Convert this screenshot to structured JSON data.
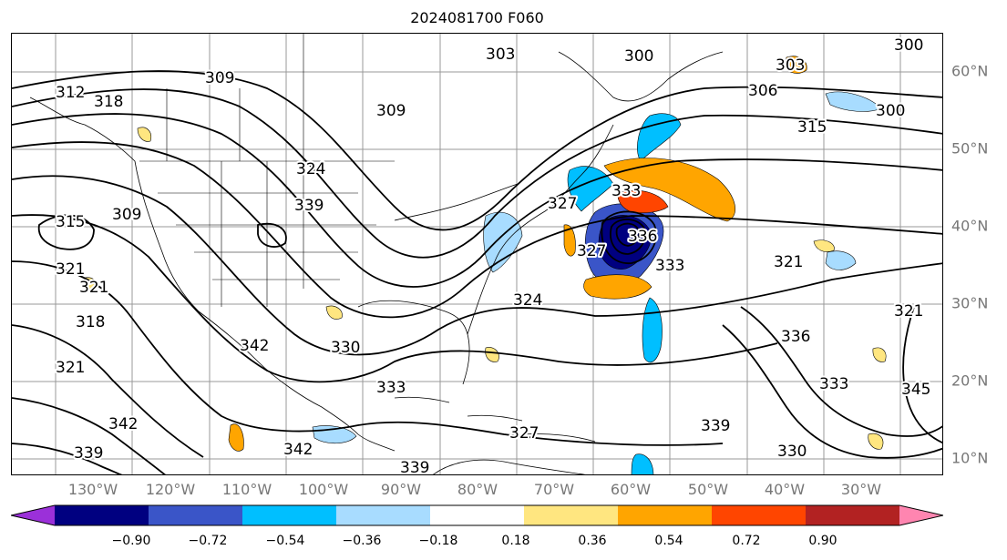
{
  "title": "2024081700 F060",
  "map": {
    "lon_labels": [
      "130°W",
      "120°W",
      "110°W",
      "100°W",
      "90°W",
      "80°W",
      "70°W",
      "60°W",
      "50°W",
      "40°W",
      "30°W"
    ],
    "lat_labels": [
      "60°N",
      "50°N",
      "40°N",
      "30°N",
      "20°N",
      "10°N"
    ],
    "contour_labels": [
      "300",
      "300",
      "300",
      "303",
      "303",
      "306",
      "309",
      "309",
      "309",
      "312",
      "315",
      "315",
      "318",
      "318",
      "321",
      "321",
      "321",
      "321",
      "321",
      "324",
      "324",
      "327",
      "327",
      "327",
      "330",
      "330",
      "333",
      "333",
      "333",
      "333",
      "336",
      "336",
      "339",
      "339",
      "339",
      "339",
      "342",
      "342",
      "342",
      "345"
    ],
    "colors": {
      "contour": "#000000",
      "coastline": "#000000",
      "gridline": "#999999",
      "axis_label": "#777777"
    }
  },
  "colorbar": {
    "ticks": [
      "−0.90",
      "−0.72",
      "−0.54",
      "−0.36",
      "−0.18",
      "0.18",
      "0.36",
      "0.54",
      "0.72",
      "0.90"
    ],
    "colors": [
      "#9b30d9",
      "#000080",
      "#3a55c8",
      "#00bfff",
      "#a8dcff",
      "#ffffff",
      "#ffe680",
      "#ffa500",
      "#ff4500",
      "#b22222",
      "#ff85b0"
    ]
  }
}
